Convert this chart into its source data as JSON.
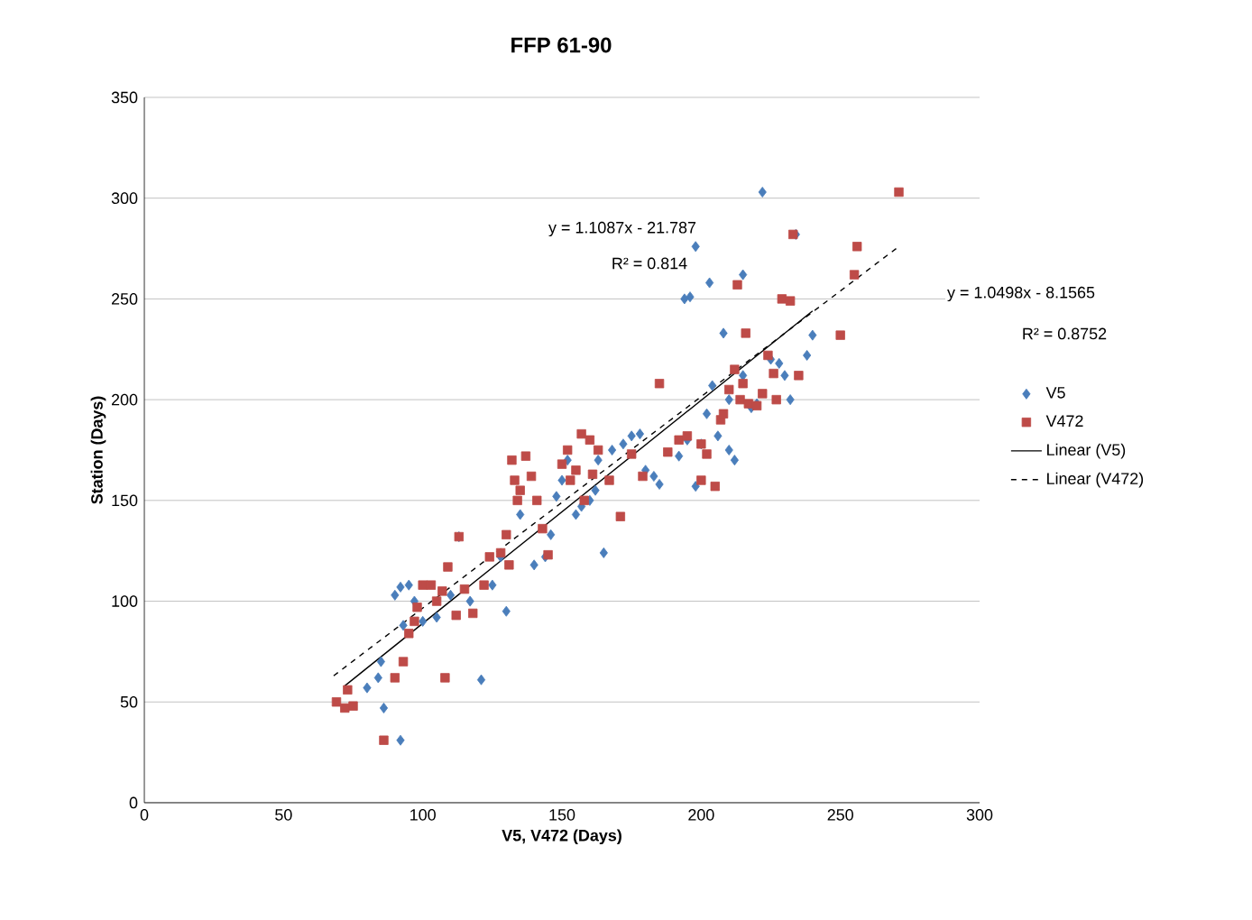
{
  "chart_data": {
    "type": "scatter",
    "title": "FFP 61-90",
    "xlabel": "V5, V472 (Days)",
    "ylabel": "Station (Days)",
    "xlim": [
      0,
      300
    ],
    "ylim": [
      0,
      350
    ],
    "xticks": [
      0,
      50,
      100,
      150,
      200,
      250,
      300
    ],
    "yticks": [
      0,
      50,
      100,
      150,
      200,
      250,
      300,
      350
    ],
    "grid": "y",
    "legend": "right",
    "annotations": [
      "y = 1.1087x - 21.787",
      "R² = 0.814",
      "y = 1.0498x - 8.1565",
      "R² = 0.8752"
    ],
    "series": [
      {
        "name": "V5",
        "marker": "diamond",
        "color": "#4a7ebb",
        "x": [
          92,
          86,
          84,
          80,
          121,
          85,
          93,
          90,
          92,
          95,
          110,
          97,
          113,
          130,
          128,
          140,
          144,
          146,
          148,
          150,
          155,
          157,
          160,
          162,
          165,
          163,
          168,
          172,
          175,
          178,
          180,
          183,
          185,
          192,
          195,
          198,
          200,
          202,
          204,
          206,
          210,
          212,
          215,
          218,
          220,
          222,
          225,
          228,
          230,
          232,
          234,
          238,
          240,
          208,
          196,
          194,
          203,
          198,
          215,
          210,
          152,
          135,
          125,
          117,
          105,
          100
        ],
        "values": [
          31,
          47,
          62,
          57,
          61,
          70,
          88,
          103,
          107,
          108,
          103,
          100,
          132,
          95,
          122,
          118,
          122,
          133,
          152,
          160,
          143,
          147,
          150,
          155,
          124,
          170,
          175,
          178,
          182,
          183,
          165,
          162,
          158,
          172,
          180,
          157,
          178,
          193,
          207,
          182,
          175,
          170,
          212,
          196,
          198,
          303,
          220,
          218,
          212,
          200,
          282,
          222,
          232,
          233,
          251,
          250,
          258,
          276,
          262,
          200,
          170,
          143,
          108,
          100,
          92,
          90
        ]
      },
      {
        "name": "V472",
        "marker": "square",
        "color": "#be4b48",
        "x": [
          69,
          72,
          73,
          75,
          86,
          90,
          93,
          95,
          97,
          98,
          100,
          103,
          105,
          107,
          109,
          108,
          112,
          115,
          118,
          113,
          122,
          124,
          128,
          130,
          131,
          132,
          133,
          134,
          135,
          137,
          139,
          141,
          143,
          145,
          150,
          152,
          153,
          155,
          157,
          158,
          160,
          161,
          163,
          167,
          171,
          175,
          179,
          185,
          188,
          192,
          195,
          200,
          200,
          202,
          205,
          207,
          208,
          210,
          212,
          214,
          213,
          216,
          215,
          217,
          220,
          222,
          224,
          226,
          227,
          229,
          232,
          233,
          235,
          250,
          255,
          256,
          271
        ],
        "values": [
          50,
          47,
          56,
          48,
          31,
          62,
          70,
          84,
          90,
          97,
          108,
          108,
          100,
          105,
          117,
          62,
          93,
          106,
          94,
          132,
          108,
          122,
          124,
          133,
          118,
          170,
          160,
          150,
          155,
          172,
          162,
          150,
          136,
          123,
          168,
          175,
          160,
          165,
          183,
          150,
          180,
          163,
          175,
          160,
          142,
          173,
          162,
          208,
          174,
          180,
          182,
          160,
          178,
          173,
          157,
          190,
          193,
          205,
          215,
          200,
          257,
          233,
          208,
          198,
          197,
          203,
          222,
          213,
          200,
          250,
          249,
          282,
          212,
          232,
          262,
          276,
          303
        ]
      },
      {
        "name": "Linear (V5)",
        "type": "line",
        "line_style": "solid",
        "color": "#000000",
        "x": [
          72,
          240
        ],
        "values": [
          58,
          244
        ]
      },
      {
        "name": "Linear (V472)",
        "type": "line",
        "line_style": "dashed",
        "color": "#000000",
        "x": [
          68,
          271
        ],
        "values": [
          63,
          276
        ]
      }
    ]
  }
}
